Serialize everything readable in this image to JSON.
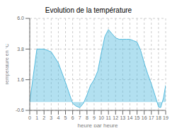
{
  "chart_data": {
    "type": "area",
    "title": "Evolution de la température",
    "xlabel": "heure par heure",
    "ylabel": "Température en °C",
    "x": [
      0,
      1,
      2,
      3,
      4,
      5,
      6,
      6.5,
      7,
      7.5,
      8,
      8.5,
      9,
      9.5,
      10,
      10.5,
      11,
      11.5,
      12,
      12.5,
      13,
      13.5,
      14,
      14.5,
      15,
      15.5,
      16,
      16.5,
      17,
      17.5,
      18,
      18.3,
      18.7,
      19
    ],
    "values": [
      0.0,
      3.8,
      3.8,
      3.6,
      2.8,
      1.4,
      -0.1,
      -0.3,
      -0.4,
      -0.1,
      0.5,
      1.2,
      1.6,
      2.2,
      3.5,
      4.7,
      5.2,
      4.9,
      4.6,
      4.5,
      4.5,
      4.5,
      4.5,
      4.4,
      4.3,
      3.7,
      2.8,
      2.0,
      1.3,
      0.5,
      -0.35,
      -0.4,
      0.3,
      1.2
    ],
    "color": "#55bbdd",
    "xlim": [
      0,
      19
    ],
    "xticks": [
      0,
      1,
      2,
      3,
      4,
      5,
      6,
      7,
      8,
      9,
      10,
      11,
      12,
      13,
      14,
      15,
      16,
      17,
      18,
      19
    ],
    "ylim": [
      -0.6,
      6.0
    ],
    "yticks": [
      -0.6,
      1.6,
      3.8,
      {
        "value": 6.0,
        "label": "6.0"
      }
    ],
    "grid": true
  }
}
